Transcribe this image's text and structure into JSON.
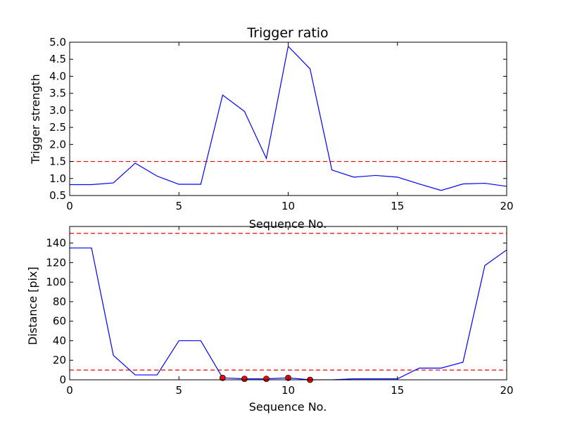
{
  "chart_data": [
    {
      "type": "line",
      "title": "Trigger ratio",
      "xlabel": "Sequence No.",
      "ylabel": "Trigger strength",
      "xlim": [
        0,
        20
      ],
      "ylim": [
        0.5,
        5.0
      ],
      "xticks": [
        0,
        5,
        10,
        15,
        20
      ],
      "yticks": [
        0.5,
        1.0,
        1.5,
        2.0,
        2.5,
        3.0,
        3.5,
        4.0,
        4.5,
        5.0
      ],
      "ytick_labels": [
        "0.5",
        "1.0",
        "1.5",
        "2.0",
        "2.5",
        "3.0",
        "3.5",
        "4.0",
        "4.5",
        "5.0"
      ],
      "grid": false,
      "line_color": "#0000ff",
      "threshold_color": "#ff0000",
      "x": [
        0,
        1,
        2,
        3,
        4,
        5,
        6,
        7,
        8,
        9,
        10,
        11,
        12,
        13,
        14,
        15,
        16,
        17,
        18,
        19,
        20
      ],
      "y": [
        0.82,
        0.82,
        0.87,
        1.45,
        1.07,
        0.83,
        0.83,
        3.45,
        2.97,
        1.59,
        4.88,
        4.22,
        1.25,
        1.04,
        1.09,
        1.04,
        0.84,
        0.65,
        0.84,
        0.86,
        0.77
      ],
      "thresholds": [
        1.5
      ],
      "markers": []
    },
    {
      "type": "line",
      "title": "",
      "xlabel": "Sequence No.",
      "ylabel": "Distance [pix]",
      "xlim": [
        0,
        20
      ],
      "ylim": [
        0,
        157
      ],
      "xticks": [
        0,
        5,
        10,
        15,
        20
      ],
      "yticks": [
        0,
        20,
        40,
        60,
        80,
        100,
        120,
        140
      ],
      "ytick_labels": [
        "0",
        "20",
        "40",
        "60",
        "80",
        "100",
        "120",
        "140"
      ],
      "grid": false,
      "line_color": "#0000ff",
      "threshold_color": "#ff0000",
      "marker_color": "#ff0000",
      "x": [
        0,
        1,
        2,
        3,
        4,
        5,
        6,
        7,
        8,
        9,
        10,
        11,
        12,
        13,
        14,
        15,
        16,
        17,
        18,
        19,
        20
      ],
      "y": [
        135,
        135,
        25,
        5,
        5,
        40,
        40,
        2,
        1,
        1,
        2,
        0,
        0,
        1,
        1,
        1,
        12,
        12,
        18,
        117,
        133
      ],
      "thresholds": [
        150,
        10
      ],
      "markers": [
        {
          "x": 7,
          "y": 2
        },
        {
          "x": 8,
          "y": 1
        },
        {
          "x": 9,
          "y": 1
        },
        {
          "x": 10,
          "y": 2
        },
        {
          "x": 11,
          "y": 0
        }
      ]
    }
  ]
}
